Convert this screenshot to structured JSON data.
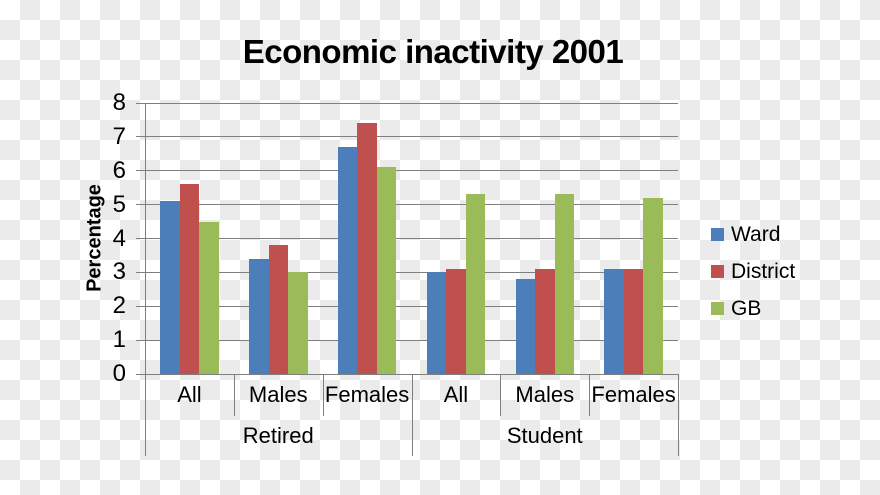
{
  "title": "Economic inactivity 2001",
  "chart_data": {
    "type": "bar",
    "title": "Economic inactivity 2001",
    "xlabel": "",
    "ylabel": "Percentage",
    "ylim": [
      0,
      8
    ],
    "ytick_step": 1,
    "yticks": [
      0,
      1,
      2,
      3,
      4,
      5,
      6,
      7,
      8
    ],
    "grid": true,
    "legend_position": "right",
    "categories": [
      "All",
      "Males",
      "Females",
      "All",
      "Males",
      "Females"
    ],
    "group_labels": [
      "Retired",
      "Student"
    ],
    "categories_per_group": 3,
    "series": [
      {
        "name": "Ward",
        "color": "#4C7EBA",
        "values": [
          5.1,
          3.4,
          6.7,
          3.0,
          2.8,
          3.1
        ]
      },
      {
        "name": "District",
        "color": "#BF504D",
        "values": [
          5.6,
          3.8,
          7.4,
          3.1,
          3.1,
          3.1
        ]
      },
      {
        "name": "GB",
        "color": "#9BBB59",
        "values": [
          4.5,
          3.0,
          6.1,
          5.3,
          5.3,
          5.2
        ]
      }
    ]
  },
  "colors": {
    "gridline": "#7f7f7f",
    "axis": "#7f7f7f",
    "checker_light": "#ffffff",
    "checker_dark": "#ebebeb",
    "text": "#000000"
  }
}
